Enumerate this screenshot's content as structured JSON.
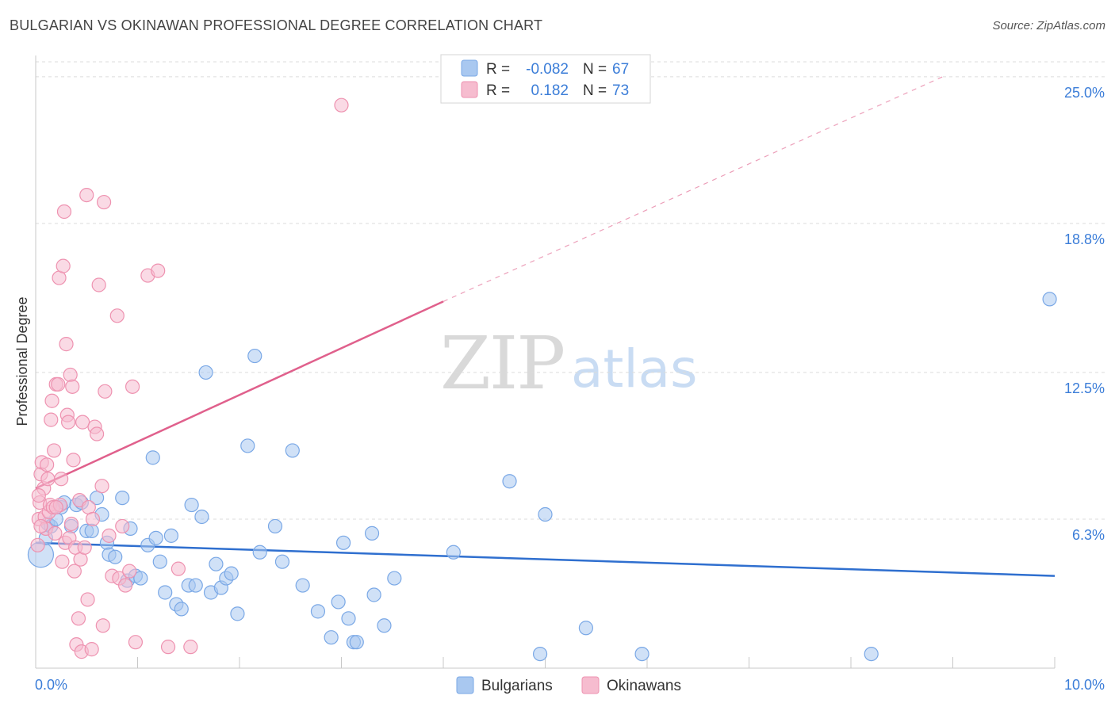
{
  "header": {
    "title": "BULGARIAN VS OKINAWAN PROFESSIONAL DEGREE CORRELATION CHART",
    "source": "Source: ZipAtlas.com"
  },
  "legend_box": {
    "row1": {
      "r_label": "R =",
      "r_value": "-0.082",
      "n_label": "N =",
      "n_value": "67"
    },
    "row2": {
      "r_label": "R =",
      "r_value": "0.182",
      "n_label": "N =",
      "n_value": "73"
    }
  },
  "bottom_legend": {
    "a": "Bulgarians",
    "b": "Okinawans"
  },
  "watermark": {
    "zip": "ZIP",
    "atlas": "atlas"
  },
  "colors": {
    "blue_fill": "#a9c8f0",
    "blue_stroke": "#7aa8e6",
    "blue_line": "#2f6fcf",
    "pink_fill": "#f6bccf",
    "pink_stroke": "#ee92b0",
    "pink_line": "#e0608c",
    "tick_text": "#3b7dd8",
    "grid": "#dcdcdc"
  },
  "chart_data": {
    "type": "scatter",
    "title": "BULGARIAN VS OKINAWAN PROFESSIONAL DEGREE CORRELATION CHART",
    "xlabel": "",
    "ylabel": "Professional Degree",
    "xlim": [
      0,
      10
    ],
    "ylim": [
      0,
      25.9
    ],
    "x_tick_labels": [
      "0.0%",
      "10.0%"
    ],
    "y_ticks": [
      6.3,
      12.5,
      18.8,
      25.0
    ],
    "y_tick_labels": [
      "6.3%",
      "12.5%",
      "18.8%",
      "25.0%"
    ],
    "series": [
      {
        "name": "Bulgarians",
        "R": -0.082,
        "N": 67,
        "trend": {
          "x0": 0.0,
          "y0": 5.3,
          "x1": 10.0,
          "y1": 3.9
        },
        "points": [
          [
            0.05,
            4.8
          ],
          [
            0.1,
            5.5
          ],
          [
            0.12,
            6.1
          ],
          [
            0.15,
            6.0
          ],
          [
            0.2,
            6.3
          ],
          [
            0.25,
            6.8
          ],
          [
            0.28,
            7.0
          ],
          [
            0.35,
            6.0
          ],
          [
            0.4,
            6.9
          ],
          [
            0.45,
            7.0
          ],
          [
            0.5,
            5.8
          ],
          [
            0.55,
            5.8
          ],
          [
            0.6,
            7.2
          ],
          [
            0.65,
            6.5
          ],
          [
            0.7,
            5.3
          ],
          [
            0.72,
            4.8
          ],
          [
            0.78,
            4.7
          ],
          [
            0.85,
            7.2
          ],
          [
            0.9,
            3.7
          ],
          [
            0.93,
            5.9
          ],
          [
            0.98,
            3.9
          ],
          [
            1.03,
            3.8
          ],
          [
            1.1,
            5.2
          ],
          [
            1.15,
            8.9
          ],
          [
            1.18,
            5.5
          ],
          [
            1.22,
            4.5
          ],
          [
            1.27,
            3.2
          ],
          [
            1.33,
            5.6
          ],
          [
            1.38,
            2.7
          ],
          [
            1.43,
            2.5
          ],
          [
            1.5,
            3.5
          ],
          [
            1.53,
            6.9
          ],
          [
            1.57,
            3.5
          ],
          [
            1.63,
            6.4
          ],
          [
            1.67,
            12.5
          ],
          [
            1.72,
            3.2
          ],
          [
            1.77,
            4.4
          ],
          [
            1.82,
            3.4
          ],
          [
            1.87,
            3.8
          ],
          [
            1.92,
            4.0
          ],
          [
            1.98,
            2.3
          ],
          [
            2.15,
            13.2
          ],
          [
            2.08,
            9.4
          ],
          [
            2.2,
            4.9
          ],
          [
            2.35,
            6.0
          ],
          [
            2.42,
            4.5
          ],
          [
            2.52,
            9.2
          ],
          [
            2.62,
            3.5
          ],
          [
            2.77,
            2.4
          ],
          [
            2.97,
            2.8
          ],
          [
            3.07,
            2.1
          ],
          [
            3.12,
            1.1
          ],
          [
            3.15,
            1.1
          ],
          [
            2.9,
            1.3
          ],
          [
            3.02,
            5.3
          ],
          [
            3.32,
            3.1
          ],
          [
            3.42,
            1.8
          ],
          [
            3.52,
            3.8
          ],
          [
            3.3,
            5.7
          ],
          [
            4.1,
            4.9
          ],
          [
            4.65,
            7.9
          ],
          [
            4.95,
            0.6
          ],
          [
            5.0,
            6.5
          ],
          [
            5.4,
            1.7
          ],
          [
            5.95,
            0.6
          ],
          [
            8.2,
            0.6
          ],
          [
            9.95,
            15.6
          ]
        ]
      },
      {
        "name": "Okinawans",
        "R": 0.182,
        "N": 73,
        "trend": {
          "x0": 0.0,
          "y0": 7.6,
          "x1": 4.0,
          "y1": 15.5
        },
        "trend_ext": {
          "x0": 4.0,
          "y0": 15.5,
          "x1": 8.9,
          "y1": 25.0
        },
        "points": [
          [
            0.02,
            5.2
          ],
          [
            0.03,
            6.3
          ],
          [
            0.04,
            7.0
          ],
          [
            0.05,
            8.2
          ],
          [
            0.06,
            8.7
          ],
          [
            0.08,
            7.6
          ],
          [
            0.09,
            6.4
          ],
          [
            0.1,
            5.9
          ],
          [
            0.11,
            8.6
          ],
          [
            0.12,
            8.0
          ],
          [
            0.13,
            6.6
          ],
          [
            0.14,
            6.9
          ],
          [
            0.15,
            10.5
          ],
          [
            0.16,
            11.3
          ],
          [
            0.17,
            6.8
          ],
          [
            0.18,
            9.2
          ],
          [
            0.19,
            5.7
          ],
          [
            0.2,
            12.0
          ],
          [
            0.22,
            12.0
          ],
          [
            0.23,
            16.5
          ],
          [
            0.24,
            6.9
          ],
          [
            0.25,
            8.0
          ],
          [
            0.26,
            4.5
          ],
          [
            0.27,
            17.0
          ],
          [
            0.28,
            19.3
          ],
          [
            0.29,
            5.3
          ],
          [
            0.3,
            13.7
          ],
          [
            0.31,
            10.7
          ],
          [
            0.32,
            10.4
          ],
          [
            0.33,
            5.5
          ],
          [
            0.34,
            12.4
          ],
          [
            0.35,
            6.1
          ],
          [
            0.36,
            11.9
          ],
          [
            0.37,
            8.8
          ],
          [
            0.38,
            4.1
          ],
          [
            0.39,
            5.1
          ],
          [
            0.4,
            1.0
          ],
          [
            0.42,
            2.1
          ],
          [
            0.43,
            7.1
          ],
          [
            0.44,
            4.6
          ],
          [
            0.45,
            0.7
          ],
          [
            0.46,
            10.4
          ],
          [
            0.48,
            5.1
          ],
          [
            0.5,
            20.0
          ],
          [
            0.51,
            2.9
          ],
          [
            0.52,
            6.8
          ],
          [
            0.55,
            0.8
          ],
          [
            0.56,
            6.3
          ],
          [
            0.58,
            10.2
          ],
          [
            0.6,
            9.9
          ],
          [
            0.62,
            16.2
          ],
          [
            0.65,
            7.7
          ],
          [
            0.66,
            1.8
          ],
          [
            0.67,
            19.7
          ],
          [
            0.68,
            11.7
          ],
          [
            0.72,
            5.6
          ],
          [
            0.75,
            3.9
          ],
          [
            0.8,
            14.9
          ],
          [
            0.82,
            3.8
          ],
          [
            0.85,
            6.0
          ],
          [
            0.88,
            3.5
          ],
          [
            0.92,
            4.1
          ],
          [
            0.95,
            11.9
          ],
          [
            0.98,
            1.1
          ],
          [
            1.1,
            16.6
          ],
          [
            1.2,
            16.8
          ],
          [
            1.3,
            0.9
          ],
          [
            1.4,
            4.2
          ],
          [
            1.52,
            0.9
          ],
          [
            3.0,
            23.8
          ],
          [
            0.03,
            7.3
          ],
          [
            0.05,
            6.0
          ],
          [
            0.2,
            6.8
          ]
        ]
      }
    ]
  }
}
